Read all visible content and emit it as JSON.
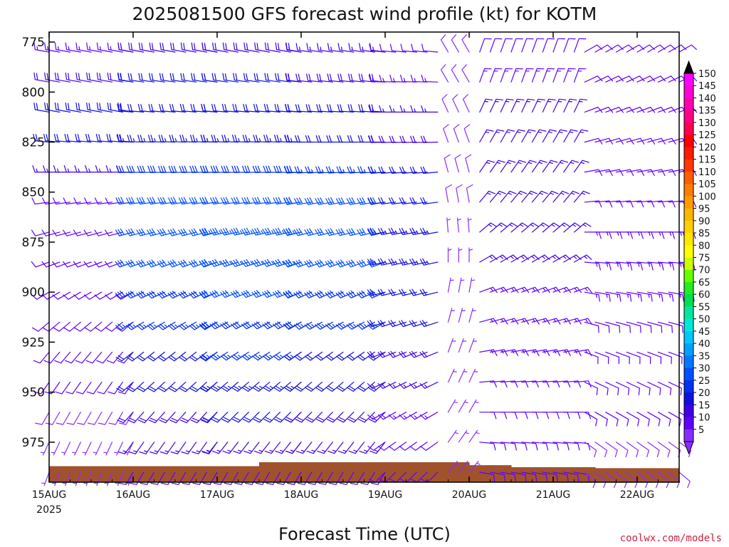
{
  "chart_data": {
    "type": "wind-barb-profile",
    "title": "2025081500 GFS forecast wind profile (kt) for KOTM",
    "xlabel": "Forecast Time (UTC)",
    "x_ticks": [
      "15AUG",
      "16AUG",
      "17AUG",
      "18AUG",
      "19AUG",
      "20AUG",
      "21AUG",
      "22AUG"
    ],
    "x_year": "2025",
    "y_ticks": [
      775,
      800,
      825,
      850,
      875,
      900,
      925,
      950,
      975
    ],
    "ylim": [
      995,
      770
    ],
    "x_range_hours": [
      0,
      180
    ],
    "time_step_hours": 3,
    "levels": [
      780,
      795,
      810,
      825,
      840,
      855,
      870,
      885,
      900,
      915,
      930,
      945,
      960,
      975,
      990
    ],
    "colorbar": {
      "labels": [
        150,
        145,
        140,
        135,
        130,
        125,
        120,
        115,
        110,
        105,
        100,
        95,
        90,
        85,
        80,
        75,
        70,
        65,
        60,
        55,
        50,
        45,
        40,
        35,
        30,
        25,
        20,
        15,
        10,
        5
      ],
      "colors": [
        "#ff00ff",
        "#ff00d8",
        "#ff00b0",
        "#ff0088",
        "#ff0050",
        "#ff0000",
        "#ff1a00",
        "#ff3600",
        "#ff5c00",
        "#ff7d00",
        "#ff9a00",
        "#ffb400",
        "#ffd000",
        "#ffe800",
        "#ffff00",
        "#ccff00",
        "#66ff00",
        "#22ee22",
        "#00e050",
        "#00e8a0",
        "#00e8d8",
        "#00c8ff",
        "#00a0ff",
        "#0078ff",
        "#0050ff",
        "#0030f0",
        "#1010e0",
        "#4000e8",
        "#6000ff",
        "#8a2cff"
      ]
    },
    "credit": "coolwx.com/models",
    "terrain_color": "#a0522d",
    "wind": [
      {
        "hours": [
          0,
          24
        ],
        "speed": [
          14,
          18,
          20,
          20,
          16,
          12,
          12,
          12,
          12,
          10,
          10,
          10,
          8,
          6,
          5
        ],
        "dir": [
          280,
          280,
          280,
          275,
          270,
          262,
          255,
          250,
          240,
          230,
          220,
          215,
          210,
          205,
          200
        ]
      },
      {
        "hours": [
          24,
          48
        ],
        "speed": [
          18,
          20,
          22,
          24,
          28,
          32,
          32,
          30,
          28,
          25,
          22,
          20,
          18,
          15,
          12
        ],
        "dir": [
          280,
          278,
          275,
          272,
          268,
          262,
          255,
          250,
          245,
          238,
          232,
          228,
          222,
          215,
          210
        ]
      },
      {
        "hours": [
          48,
          72
        ],
        "speed": [
          18,
          20,
          22,
          24,
          28,
          30,
          33,
          33,
          30,
          28,
          26,
          24,
          20,
          16,
          12
        ],
        "dir": [
          280,
          278,
          275,
          272,
          268,
          262,
          258,
          252,
          248,
          242,
          236,
          230,
          225,
          218,
          210
        ]
      },
      {
        "hours": [
          72,
          96
        ],
        "speed": [
          16,
          18,
          20,
          22,
          26,
          30,
          32,
          32,
          28,
          25,
          22,
          20,
          18,
          15,
          12
        ],
        "dir": [
          278,
          276,
          274,
          270,
          266,
          260,
          256,
          250,
          246,
          240,
          235,
          230,
          225,
          218,
          210
        ]
      },
      {
        "hours": [
          96,
          111
        ],
        "speed": [
          12,
          14,
          16,
          18,
          20,
          22,
          24,
          24,
          22,
          20,
          18,
          16,
          14,
          12,
          10
        ],
        "dir": [
          275,
          272,
          270,
          268,
          265,
          262,
          260,
          258,
          256,
          252,
          248,
          244,
          240,
          235,
          225
        ]
      },
      {
        "hours": [
          114,
          120
        ],
        "speed": [
          8,
          8,
          8,
          8,
          8,
          8,
          6,
          6,
          5,
          5,
          5,
          5,
          5,
          5,
          5
        ],
        "dir": [
          330,
          330,
          335,
          340,
          345,
          350,
          355,
          360,
          10,
          15,
          20,
          25,
          30,
          35,
          40
        ]
      },
      {
        "hours": [
          123,
          150
        ],
        "speed": [
          12,
          14,
          16,
          16,
          16,
          16,
          16,
          16,
          14,
          14,
          14,
          12,
          12,
          10,
          10
        ],
        "dir": [
          20,
          20,
          25,
          30,
          35,
          40,
          50,
          60,
          70,
          75,
          80,
          85,
          90,
          95,
          100
        ]
      },
      {
        "hours": [
          153,
          180
        ],
        "speed": [
          10,
          10,
          12,
          12,
          12,
          12,
          14,
          14,
          14,
          12,
          12,
          10,
          10,
          8,
          8
        ],
        "dir": [
          60,
          65,
          70,
          75,
          80,
          85,
          90,
          95,
          100,
          105,
          110,
          115,
          120,
          125,
          130
        ]
      }
    ],
    "surface_pressure": [
      {
        "hours": [
          0,
          60
        ],
        "p": 987
      },
      {
        "hours": [
          60,
          120
        ],
        "p": 985
      },
      {
        "hours": [
          120,
          132
        ],
        "p": 986.5
      },
      {
        "hours": [
          132,
          156
        ],
        "p": 987.5
      },
      {
        "hours": [
          156,
          180
        ],
        "p": 988
      }
    ]
  }
}
